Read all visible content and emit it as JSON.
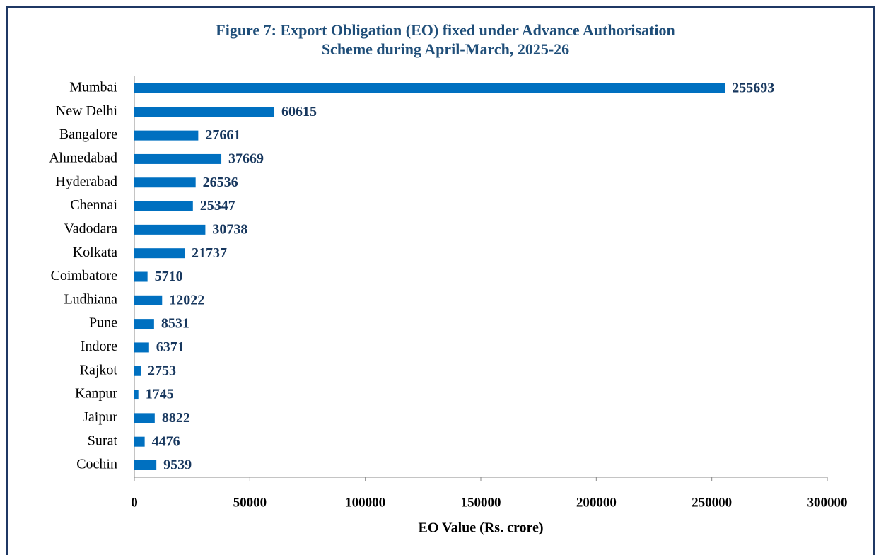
{
  "chart_data": {
    "type": "bar",
    "orientation": "horizontal",
    "title": [
      "Figure 7: Export Obligation (EO) fixed under Advance Authorisation",
      "Scheme during April-March,  2025-26"
    ],
    "x_label": "EO Value (Rs. crore)",
    "categories": [
      "Mumbai",
      "New Delhi",
      "Bangalore",
      "Ahmedabad",
      "Hyderabad",
      "Chennai",
      "Vadodara",
      "Kolkata",
      "Coimbatore",
      "Ludhiana",
      "Pune",
      "Indore",
      "Rajkot",
      "Kanpur",
      "Jaipur",
      "Surat",
      "Cochin"
    ],
    "values": [
      255693,
      60615,
      27661,
      37669,
      26536,
      25347,
      30738,
      21737,
      5710,
      12022,
      8531,
      6371,
      2753,
      1745,
      8822,
      4476,
      9539
    ],
    "color": "#0070c0",
    "xlim": [
      0,
      300000
    ],
    "xticks": [
      0,
      50000,
      100000,
      150000,
      200000,
      250000,
      300000
    ]
  }
}
